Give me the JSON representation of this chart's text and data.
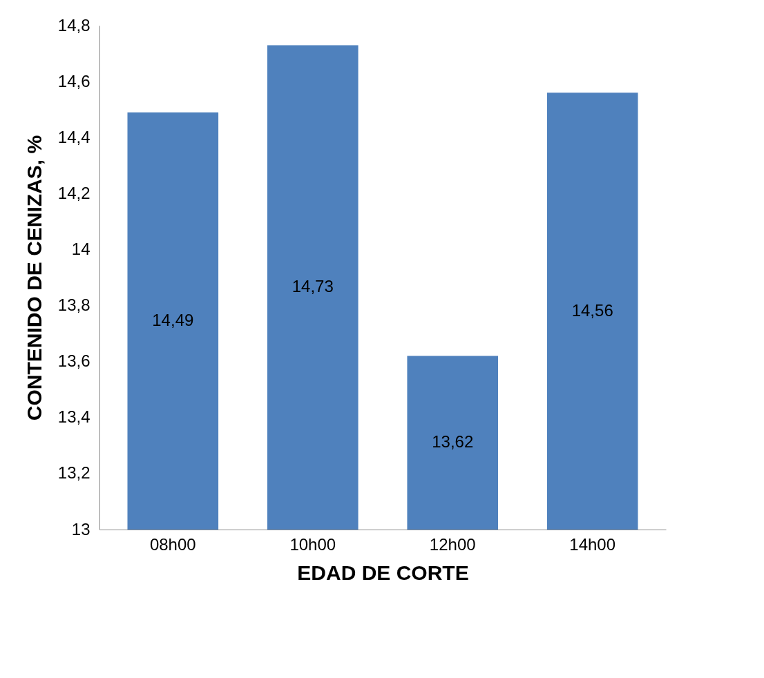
{
  "chart_data": {
    "type": "bar",
    "xlabel": "EDAD DE CORTE",
    "ylabel": "CONTENIDO DE CENIZAS, %",
    "categories": [
      "08h00",
      "10h00",
      "12h00",
      "14h00"
    ],
    "values": [
      14.49,
      14.73,
      13.62,
      14.56
    ],
    "value_labels": [
      "14,49",
      "14,73",
      "13,62",
      "14,56"
    ],
    "color": "#4f81bd",
    "ylim": [
      13,
      14.8
    ],
    "yticks": [
      13,
      {
        "value": 13.2,
        "label": "13,2"
      },
      {
        "value": 13.4,
        "label": "13,4"
      },
      {
        "value": 13.6,
        "label": "13,6"
      },
      {
        "value": 13.8,
        "label": "13,8"
      },
      14,
      {
        "value": 14.2,
        "label": "14,2"
      },
      {
        "value": 14.4,
        "label": "14,4"
      },
      {
        "value": 14.6,
        "label": "14,6"
      },
      {
        "value": 14.8,
        "label": "14,8"
      }
    ],
    "grid": false
  }
}
